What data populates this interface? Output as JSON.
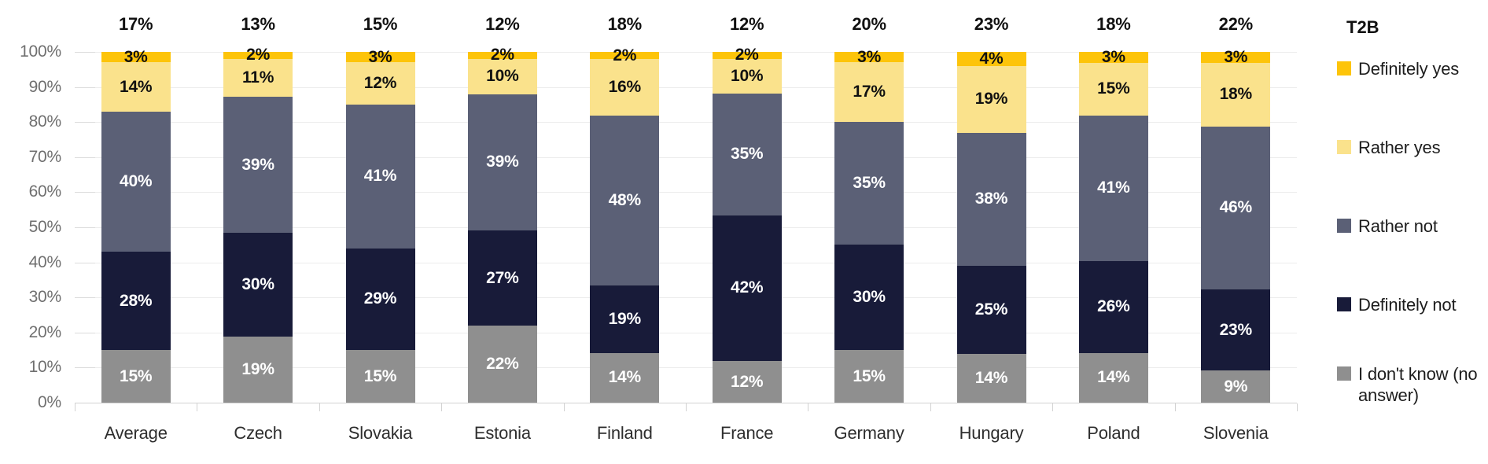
{
  "chart_data": {
    "type": "bar",
    "stacked": true,
    "grid": true,
    "legend_position": "right",
    "legend_title": "T2B",
    "categories": [
      "Average",
      "Czech",
      "Slovakia",
      "Estonia",
      "Finland",
      "France",
      "Germany",
      "Hungary",
      "Poland",
      "Slovenia"
    ],
    "t2b_values": [
      "17%",
      "13%",
      "15%",
      "12%",
      "18%",
      "12%",
      "20%",
      "23%",
      "18%",
      "22%"
    ],
    "series": [
      {
        "name": "Definitely yes",
        "color": "#FDC40A",
        "label_color": "#111111",
        "values": [
          3,
          2,
          3,
          2,
          2,
          2,
          3,
          4,
          3,
          3
        ]
      },
      {
        "name": "Rather yes",
        "color": "#FAE28C",
        "label_color": "#111111",
        "values": [
          14,
          11,
          12,
          10,
          16,
          10,
          17,
          19,
          15,
          18
        ]
      },
      {
        "name": "Rather not",
        "color": "#5B6076",
        "label_color": "#ffffff",
        "values": [
          40,
          39,
          41,
          39,
          48,
          35,
          35,
          38,
          41,
          46
        ]
      },
      {
        "name": "Definitely not",
        "color": "#181B39",
        "label_color": "#ffffff",
        "values": [
          28,
          30,
          29,
          27,
          19,
          42,
          30,
          25,
          26,
          23
        ]
      },
      {
        "name": "I don't know (no answer)",
        "color": "#8F8F8F",
        "label_color": "#ffffff",
        "values": [
          15,
          19,
          15,
          22,
          14,
          12,
          15,
          14,
          14,
          9
        ]
      }
    ],
    "y_ticks": [
      "100%",
      "90%",
      "80%",
      "70%",
      "60%",
      "50%",
      "40%",
      "30%",
      "20%",
      "10%",
      "0%"
    ],
    "ylim": [
      0,
      100
    ],
    "xlabel": "",
    "ylabel": "",
    "title": ""
  }
}
